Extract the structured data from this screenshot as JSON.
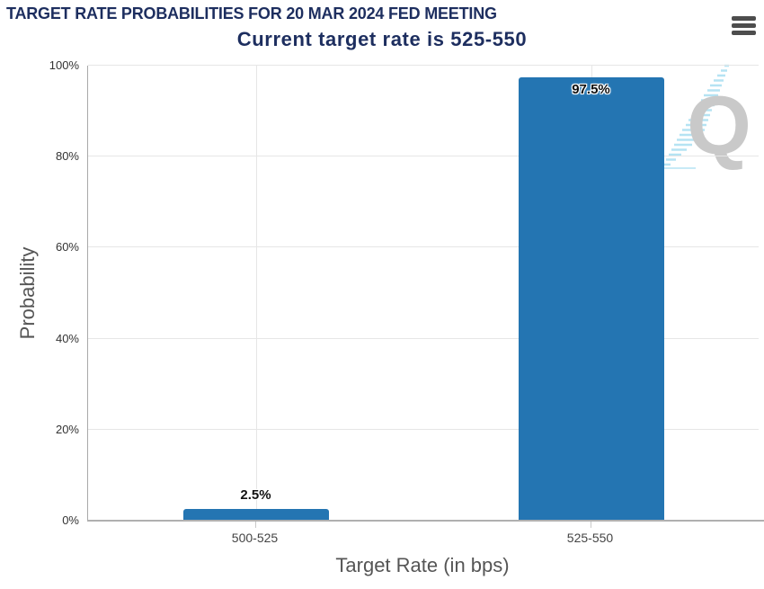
{
  "header": {
    "menu_icon": "hamburger-menu"
  },
  "watermark": {
    "name": "quikstrike-q-logo",
    "letter": "Q",
    "letter_color": "#c9c9c9",
    "stripe_color": "#b5e3f3"
  },
  "chart_data": {
    "type": "bar",
    "title": "TARGET RATE PROBABILITIES FOR 20 MAR 2024 FED MEETING",
    "subtitle": "Current target rate is 525-550",
    "categories": [
      "500-525",
      "525-550"
    ],
    "values": [
      2.5,
      97.5
    ],
    "data_labels": [
      "2.5%",
      "97.5%"
    ],
    "xlabel": "Target Rate (in bps)",
    "ylabel": "Probability",
    "ylim": [
      0,
      100
    ],
    "ytick_step": 20,
    "yticks": [
      "0%",
      "20%",
      "40%",
      "60%",
      "80%",
      "100%"
    ],
    "grid": true,
    "legend_position": "none",
    "colors": {
      "bar": "#2475b2",
      "title": "#1d2e5f",
      "gridline": "#e6e6e6",
      "axis_line": "#a9a9a9",
      "axis_title": "#555555",
      "tick_label": "#333333"
    }
  }
}
